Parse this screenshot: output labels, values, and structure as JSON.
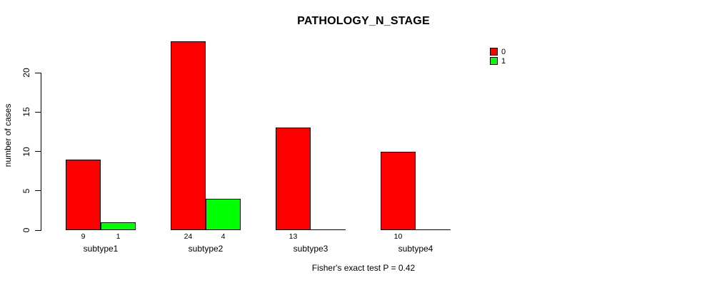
{
  "chart_data": {
    "type": "bar",
    "grouped": true,
    "title": "PATHOLOGY_N_STAGE",
    "xlabel": "",
    "ylabel": "number of cases",
    "annotation": "Fisher's exact test P = 0.42",
    "categories": [
      "subtype1",
      "subtype2",
      "subtype3",
      "subtype4"
    ],
    "series": [
      {
        "name": "0",
        "color": "#ff0000",
        "values": [
          9,
          24,
          13,
          10
        ]
      },
      {
        "name": "1",
        "color": "#00ff00",
        "values": [
          1,
          4,
          0,
          0
        ]
      }
    ],
    "yticks": [
      0,
      5,
      10,
      15,
      20
    ],
    "ylim": [
      0,
      24.2
    ],
    "grid": false,
    "legend_position": "top-right",
    "bar_value_labels": "shown under each nonzero bar",
    "colors": {
      "bar_border": "#000000",
      "axis": "#000000",
      "text": "#000000",
      "background": "#ffffff"
    }
  }
}
